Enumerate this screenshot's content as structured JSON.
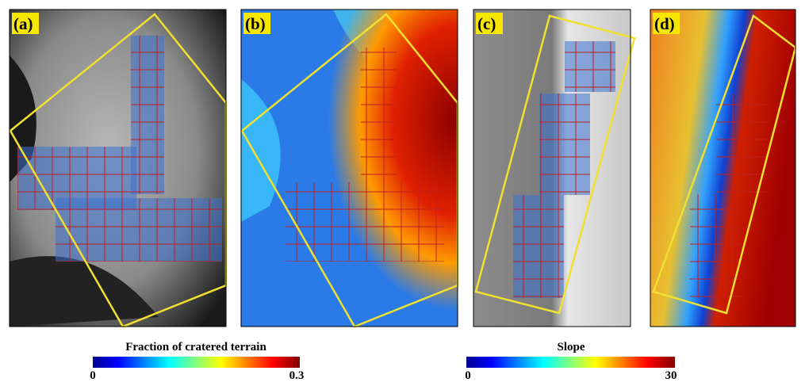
{
  "panels": [
    {
      "label": "(a)"
    },
    {
      "label": "(b)"
    },
    {
      "label": "(c)"
    },
    {
      "label": "(d)"
    }
  ],
  "colorbars": [
    {
      "title": "Fraction of cratered terrain",
      "min": 0,
      "max": 0.3
    },
    {
      "title": "Slope",
      "min": 0,
      "max": 30
    }
  ]
}
